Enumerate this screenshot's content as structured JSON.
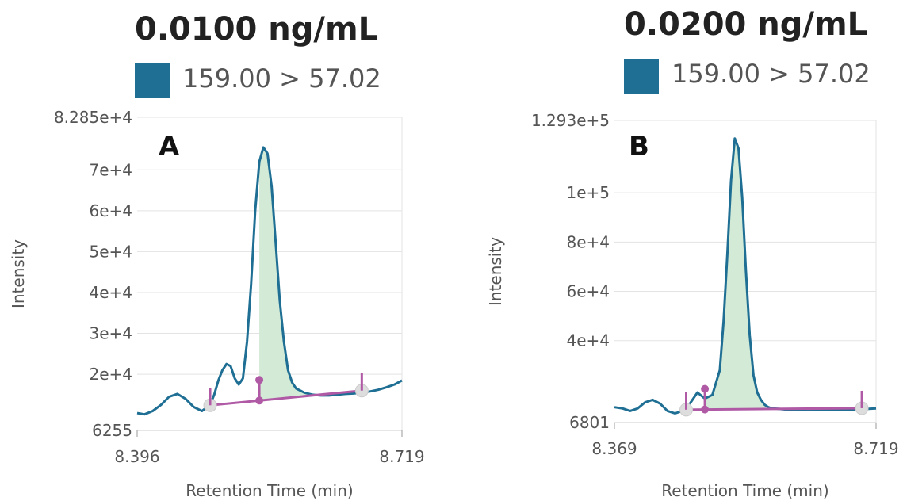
{
  "colors": {
    "trace": "#1f6f94",
    "fill": "#d3ead6",
    "baseline": "#b05aa6",
    "swatch": "#1f6f94",
    "grid": "#e3e3e3",
    "axis_text": "#555555"
  },
  "chart_data": [
    {
      "type": "line",
      "panel_label": "A",
      "title": "0.0100 ng/mL",
      "legend": [
        {
          "label": "159.00 > 57.02",
          "color": "#1f6f94"
        }
      ],
      "xlabel": "Retention Time (min)",
      "ylabel": "Intensity",
      "xlim": [
        8.396,
        8.719
      ],
      "ylim": [
        6255,
        82850
      ],
      "x_tick_labels": [
        "8.396",
        "8.719"
      ],
      "y_tick_labels": [
        "6255",
        "2e+4",
        "3e+4",
        "4e+4",
        "5e+4",
        "6e+4",
        "7e+4",
        "8.285e+4"
      ],
      "grid": true,
      "series": [
        {
          "x": [
            8.396,
            8.405,
            8.415,
            8.425,
            8.435,
            8.445,
            8.455,
            8.465,
            8.475,
            8.485,
            8.49,
            8.495,
            8.5,
            8.505,
            8.51,
            8.515,
            8.52,
            8.525,
            8.53,
            8.535,
            8.54,
            8.545,
            8.55,
            8.555,
            8.56,
            8.565,
            8.57,
            8.575,
            8.58,
            8.585,
            8.59,
            8.6,
            8.61,
            8.62,
            8.63,
            8.64,
            8.65,
            8.66,
            8.67,
            8.68,
            8.69,
            8.7,
            8.71,
            8.719
          ],
          "values": [
            10500,
            10200,
            11000,
            12500,
            14500,
            15200,
            14000,
            12000,
            11000,
            12500,
            15000,
            18500,
            21000,
            22500,
            22000,
            19000,
            17500,
            19000,
            28000,
            42000,
            60000,
            72000,
            75500,
            74000,
            66000,
            52000,
            38000,
            28000,
            21000,
            18000,
            16500,
            15500,
            15000,
            14800,
            14800,
            15000,
            15200,
            15300,
            15500,
            15800,
            16200,
            16800,
            17500,
            18500
          ]
        }
      ],
      "peak_integration": {
        "start_x": 8.485,
        "end_x": 8.67,
        "split_x": 8.545,
        "baseline_start_y": 12400,
        "baseline_end_y": 16000
      },
      "annotations": [
        {
          "text": "A"
        }
      ]
    },
    {
      "type": "line",
      "panel_label": "B",
      "title": "0.0200 ng/mL",
      "legend": [
        {
          "label": "159.00 > 57.02",
          "color": "#1f6f94"
        }
      ],
      "xlabel": "Retention Time (min)",
      "ylabel": "Intensity",
      "xlim": [
        8.369,
        8.719
      ],
      "ylim": [
        6801,
        129300
      ],
      "x_tick_labels": [
        "8.369",
        "8.719"
      ],
      "y_tick_labels": [
        "6801",
        "4e+4",
        "6e+4",
        "8e+4",
        "1e+5",
        "1.293e+5"
      ],
      "grid": true,
      "series": [
        {
          "x": [
            8.369,
            8.38,
            8.39,
            8.4,
            8.41,
            8.42,
            8.43,
            8.44,
            8.45,
            8.46,
            8.47,
            8.48,
            8.49,
            8.5,
            8.51,
            8.515,
            8.52,
            8.525,
            8.53,
            8.535,
            8.54,
            8.545,
            8.55,
            8.555,
            8.56,
            8.565,
            8.57,
            8.575,
            8.58,
            8.59,
            8.6,
            8.62,
            8.64,
            8.66,
            8.68,
            8.7,
            8.719
          ],
          "values": [
            13000,
            12500,
            11500,
            12500,
            15000,
            16000,
            14500,
            11500,
            10500,
            11500,
            14500,
            19000,
            16500,
            18000,
            28000,
            48000,
            75000,
            105000,
            122000,
            118000,
            98000,
            68000,
            42000,
            26000,
            19000,
            16000,
            14000,
            13000,
            12500,
            12300,
            12000,
            12000,
            12000,
            12000,
            12000,
            12200,
            12500
          ]
        }
      ],
      "peak_integration": {
        "start_x": 8.465,
        "end_x": 8.7,
        "split_x": 8.49,
        "baseline_start_y": 12000,
        "baseline_end_y": 12600
      },
      "annotations": [
        {
          "text": "B"
        }
      ]
    }
  ]
}
